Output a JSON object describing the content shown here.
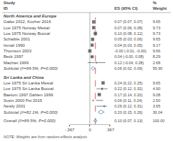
{
  "chart_data": {
    "type": "forest",
    "column_headers": {
      "label": [
        "Study",
        "ID"
      ],
      "ci": "ES (95% CI)",
      "weight": [
        "%",
        "Weight"
      ]
    },
    "groups": [
      {
        "name": "North America and Europe",
        "rows": [
          {
            "label": "Gaike 2012, Kocher 2016",
            "es": 0.07,
            "lo": 0.07,
            "hi": 0.07,
            "ci_label": "0.07 (0.07, 0.07)",
            "weight": 9.65,
            "weight_label": "9.65",
            "kind": "study",
            "color": "#444444"
          },
          {
            "label": "Loe 1975 Norway Mesial",
            "es": 0.07,
            "lo": 0.06,
            "hi": 0.08,
            "ci_label": "0.07 (0.06, 0.08)",
            "weight": 9.73,
            "weight_label": "9.73",
            "kind": "study",
            "color": "#444444"
          },
          {
            "label": "Loe 1975 Norway Buccal",
            "es": 0.1,
            "lo": 0.08,
            "hi": 0.12,
            "ci_label": "0.10 (0.08, 0.12)",
            "weight": 9.73,
            "weight_label": "9.73",
            "kind": "study",
            "color": "#444444"
          },
          {
            "label": "Schaible 2001",
            "es": 0.05,
            "lo": 0.03,
            "hi": 0.06,
            "ci_label": "0.05 (0.03, 0.06)",
            "weight": 9.65,
            "weight_label": "9.65",
            "kind": "study",
            "color": "#444444"
          },
          {
            "label": "Ismail 1990",
            "es": 0.04,
            "lo": 0.03,
            "hi": 0.05,
            "ci_label": "0.04 (0.03, 0.05)",
            "weight": 9.17,
            "weight_label": "9.17",
            "kind": "study",
            "color": "#444444"
          },
          {
            "label": "Thomson 2003",
            "es": -0.0,
            "lo": -0.01,
            "hi": -0.0,
            "ci_label": "-0.00 (-0.01, -0.00)",
            "weight": 9.66,
            "weight_label": "9.66",
            "kind": "study",
            "color": "#444444"
          },
          {
            "label": "Beck 1997",
            "es": 0.04,
            "lo": -0.0,
            "hi": 0.08,
            "ci_label": "0.04 (-0.00, 0.08)",
            "weight": 8.29,
            "weight_label": "8.29",
            "kind": "study",
            "color": "#444444"
          },
          {
            "label": "Machtei 1999",
            "es": 0.12,
            "lo": -0.04,
            "hi": 0.28,
            "ci_label": "0.12 (-0.04, 0.28)",
            "weight": 2.68,
            "weight_label": "2.68",
            "kind": "study",
            "color": "#444444"
          },
          {
            "label": "Subtotal (I²=99.5%, P=0.000)",
            "es": 0.06,
            "lo": 0.02,
            "hi": 0.09,
            "ci_label": "0.06 (0.02, 0.09)",
            "weight": 55.9,
            "weight_label": "55.90",
            "kind": "subtotal",
            "color": "#6699cc"
          }
        ]
      },
      {
        "name": "Sri Lanka and China",
        "rows": [
          {
            "label": "Loe 1975 Sri Lanka Mesial",
            "es": 0.24,
            "lo": 0.22,
            "hi": 0.25,
            "ci_label": "0.24 (0.22, 0.25)",
            "weight": 9.65,
            "weight_label": "9.65",
            "kind": "study",
            "color": "#444444"
          },
          {
            "label": "Loe 1975 Sri Lanka Buccal",
            "es": 0.22,
            "lo": 0.12,
            "hi": 0.32,
            "ci_label": "0.22 (0.12, 0.32)",
            "weight": 4.9,
            "weight_label": "4.90",
            "kind": "study",
            "color": "#444444"
          },
          {
            "label": "Baelum 1997 Dahlen 1999",
            "es": 0.17,
            "lo": 0.14,
            "hi": 0.2,
            "ci_label": "0.17 (0.14, 0.20)",
            "weight": 9.08,
            "weight_label": "9.08",
            "kind": "study",
            "color": "#444444"
          },
          {
            "label": "Susin 2000 Pei 2015",
            "es": 0.06,
            "lo": 0.11,
            "hi": 0.24,
            "ci_label": "0.06 (0.11, 0.24)",
            "weight": 2.5,
            "weight_label": "2.50",
            "kind": "study",
            "color": "#444444"
          },
          {
            "label": "Newly 2001",
            "es": 0.26,
            "lo": 0.12,
            "hi": 0.31,
            "ci_label": "0.26 (0.12, 0.31)",
            "weight": 3.65,
            "weight_label": "3.65",
            "kind": "study",
            "color": "#444444"
          },
          {
            "label": "Subtotal (I²=82.1%, P=0.000)",
            "es": 0.2,
            "lo": 0.15,
            "hi": 0.26,
            "ci_label": "0.20 (0.15, 0.26)",
            "weight": 30.04,
            "weight_label": "30.04",
            "kind": "subtotal",
            "color": "#6699cc"
          }
        ]
      }
    ],
    "overall": {
      "label": "Overall (I²=89.5%, P=0.000)",
      "es": 0.1,
      "lo": 0.07,
      "hi": 0.13,
      "ci_label": "0.10 (0.07, 0.13)",
      "weight": 100.0,
      "weight_label": "100.00",
      "kind": "overall",
      "color": "#6699cc"
    },
    "note": "NOTE: Weights are from random-effects analysis",
    "xlim": [
      -0.367,
      0.367
    ],
    "xticks": [
      {
        "value": -0.367,
        "label": "-.367"
      },
      0,
      {
        "value": 0.367,
        "label": ".367"
      }
    ],
    "ref_lines": [
      {
        "x": 0,
        "color": "#999999"
      },
      {
        "x": 0.1,
        "color": "#cc3333",
        "line_style": "dash"
      }
    ],
    "grid": false
  }
}
